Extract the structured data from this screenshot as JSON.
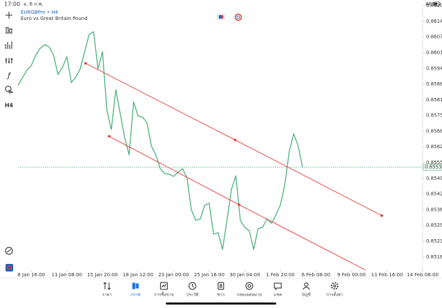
{
  "status_bar": {
    "time": "17:00",
    "date": "อ. 6 ก.พ.",
    "battery": "46%"
  },
  "toolbar": {
    "timeframe": "H4"
  },
  "chart_data": {
    "type": "line",
    "title": "EURGBPm • H4",
    "subtitle": "Euro vs Great Britain Pound",
    "color": "#4bb07a",
    "categories": [
      null,
      null,
      null,
      "8 Jan 16:00",
      null,
      null,
      null,
      null,
      null,
      null,
      null,
      "11 Jan 08:00",
      null,
      null,
      null,
      null,
      null,
      null,
      null,
      "15 Jan 20:00",
      null,
      null,
      null,
      null,
      null,
      null,
      null,
      "18 Jan 12:00",
      null,
      null,
      null,
      null,
      null,
      null,
      null,
      "23 Jan 00:00",
      null,
      null,
      null,
      null,
      null,
      null,
      null,
      "25 Jan 16:00",
      null,
      null,
      null,
      null,
      null,
      null,
      null,
      "30 Jan 04:00",
      null,
      null,
      null,
      null,
      null,
      null,
      null,
      "1 Feb 20:00",
      null,
      null,
      null,
      null,
      null,
      null,
      null,
      "6 Feb 08:00",
      null,
      null,
      null,
      null,
      null,
      null,
      null,
      "9 Feb 00:00",
      null,
      null,
      null,
      null,
      null,
      null,
      null,
      "11 Feb 16:00",
      null,
      null,
      null,
      null,
      null,
      null,
      null,
      "14 Feb 08:00"
    ],
    "values": [
      0.85874,
      0.85906,
      0.85937,
      0.85957,
      0.86,
      0.86028,
      0.86043,
      0.86034,
      0.86,
      0.8592,
      0.85949,
      0.85994,
      0.85886,
      0.85909,
      0.85943,
      0.86014,
      0.86085,
      0.86097,
      0.85943,
      0.86014,
      0.85772,
      0.85692,
      0.85857,
      0.85758,
      0.85658,
      0.85587,
      0.85806,
      0.85749,
      0.85743,
      0.85721,
      0.85624,
      0.85587,
      0.8553,
      0.8551,
      0.85507,
      0.85498,
      0.85515,
      0.8553,
      0.85493,
      0.85359,
      0.85316,
      0.85322,
      0.85379,
      0.85387,
      0.85259,
      0.85265,
      0.85196,
      0.85316,
      0.85444,
      0.85501,
      0.85316,
      0.85287,
      0.85273,
      0.85196,
      0.85282,
      0.85287,
      0.85322,
      0.85304,
      0.85339,
      0.85379,
      0.85464,
      0.85601,
      0.85675,
      0.85624,
      0.85536,
      null,
      null,
      null,
      null,
      null,
      null,
      null,
      null,
      null,
      null,
      null,
      null,
      null,
      null,
      null,
      null,
      null,
      null,
      null,
      null,
      null,
      null,
      null,
      null,
      null,
      null,
      null
    ],
    "last_price": 0.85536,
    "trend_lines": [
      {
        "color": "#e53935",
        "x": [
          15.2,
          48.8,
          81.8
        ],
        "values": [
          0.85966,
          0.85649,
          0.85336
        ]
      },
      {
        "color": "#e53935",
        "x": [
          20.5,
          49.7,
          79.0
        ],
        "values": [
          0.85664,
          0.85381,
          0.85102
        ]
      }
    ],
    "ylim": [
      0.85116,
      0.86228
    ],
    "yticks": [
      0.86205,
      0.8614,
      0.86075,
      {
        "value": 0.8601,
        "label": "0.86010"
      },
      0.85945,
      {
        "value": 0.8588,
        "label": "0.85880"
      },
      0.85815,
      {
        "value": 0.8575,
        "label": "0.85750"
      },
      0.85685,
      {
        "value": 0.8562,
        "label": "0.85620"
      },
      0.85555,
      {
        "value": 0.8549,
        "label": "0.85490"
      },
      0.85425,
      {
        "value": 0.8536,
        "label": "0.85360"
      },
      0.85295,
      {
        "value": 0.8523,
        "label": "0.85230"
      },
      0.85165
    ],
    "grid": false
  },
  "nav": [
    {
      "label": "ราคา",
      "active": false
    },
    {
      "label": "กราฟ",
      "active": true
    },
    {
      "label": "การซื้อขาย",
      "active": false
    },
    {
      "label": "ประวัติ",
      "active": false
    },
    {
      "label": "ข่าว",
      "active": false
    },
    {
      "label": "กล่องจดหมาย",
      "active": false
    },
    {
      "label": "แชท",
      "active": false
    },
    {
      "label": "บัญชี",
      "active": false
    },
    {
      "label": "การตั้งค่า",
      "active": false
    }
  ]
}
